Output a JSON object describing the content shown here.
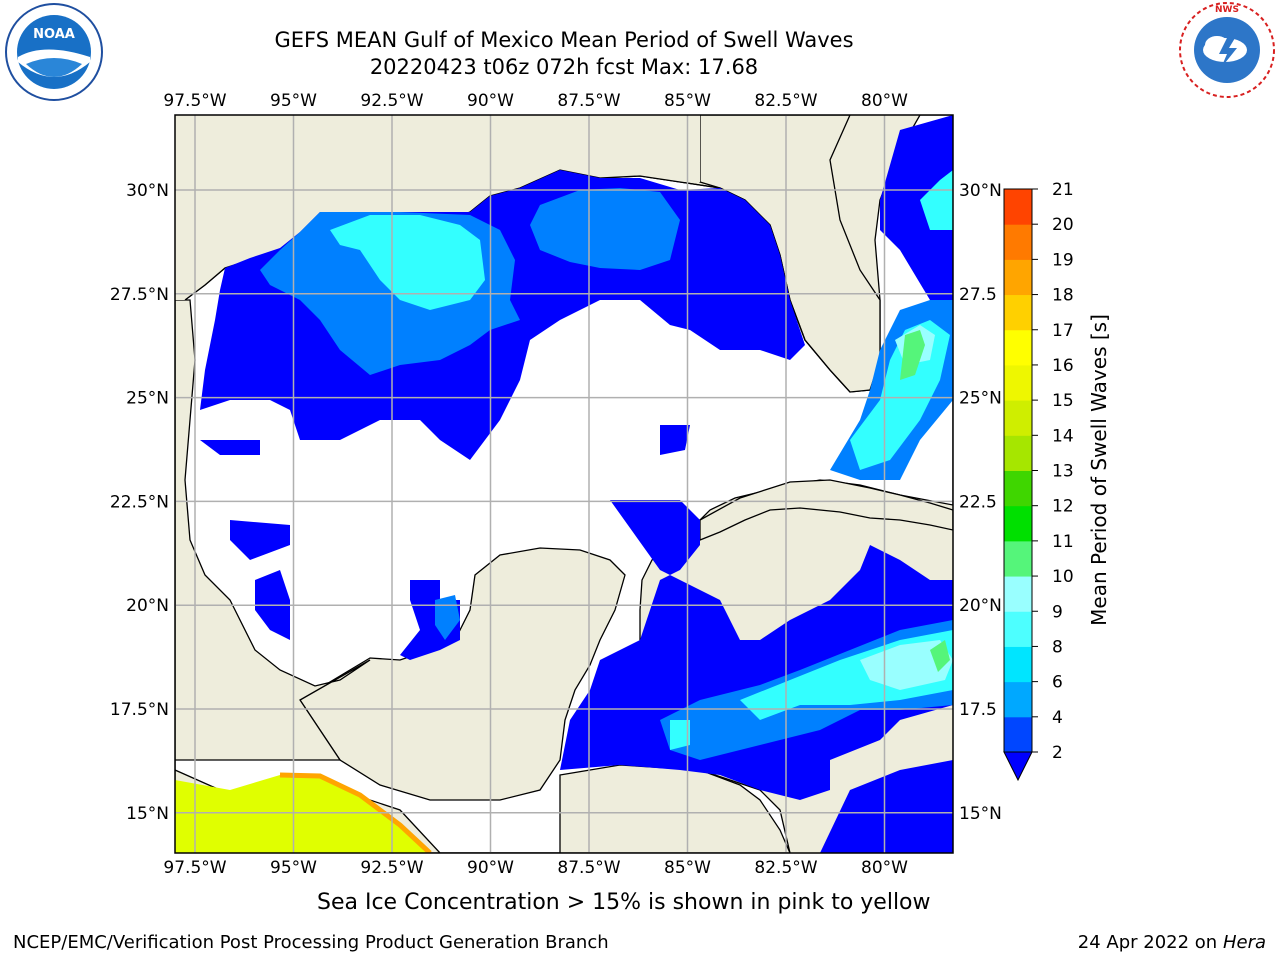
{
  "header": {
    "title_line1": "GEFS MEAN Gulf of Mexico Mean Period of Swell Waves",
    "title_line2": "20220423 t06z 072h fcst   Max: 17.68"
  },
  "logos": {
    "left": {
      "text": "NOAA",
      "ring_text": "NATIONAL OCEANIC AND ATMOSPHERIC ADMINISTRATION · U.S. DEPARTMENT OF COMMERCE"
    },
    "right": {
      "ring_text": "NATIONAL WEATHER SERVICE"
    }
  },
  "map": {
    "lon_labels": [
      "97.5°W",
      "95°W",
      "92.5°W",
      "90°W",
      "87.5°W",
      "85°W",
      "82.5°W",
      "80°W"
    ],
    "lat_labels_left": [
      "30°N",
      "27.5°N",
      "25°N",
      "22.5°N",
      "20°N",
      "17.5°N",
      "15°N"
    ],
    "lat_labels_right": [
      "30°N",
      "27.5",
      "25°N",
      "22.5",
      "20°N",
      "17.5",
      "15°N"
    ],
    "colors": {
      "land": "#eeeddc",
      "ocean_none": "#ffffff",
      "grid": "#b0b0b0"
    }
  },
  "colorbar": {
    "label": "Mean Period of Swell Waves [s]",
    "ticks": [
      "2",
      "4",
      "6",
      "8",
      "9",
      "10",
      "11",
      "12",
      "13",
      "14",
      "15",
      "16",
      "17",
      "18",
      "19",
      "20",
      "21"
    ],
    "colors": [
      "#0046ff",
      "#00a8ff",
      "#00e5ff",
      "#4dffff",
      "#99ffff",
      "#55f57a",
      "#00e000",
      "#3fd600",
      "#a6e600",
      "#cfee00",
      "#eef700",
      "#ffff00",
      "#ffd000",
      "#ffa500",
      "#ff7a00",
      "#ff4400",
      "#ff1a00",
      "#ff0000"
    ],
    "under_color": "#0000ff"
  },
  "caption": "Sea Ice Concentration > 15% is shown in pink to yellow",
  "footer": {
    "left": "NCEP/EMC/Verification Post Processing Product Generation Branch",
    "right_prefix": "24 Apr 2022 on ",
    "right_host": "Hera"
  }
}
